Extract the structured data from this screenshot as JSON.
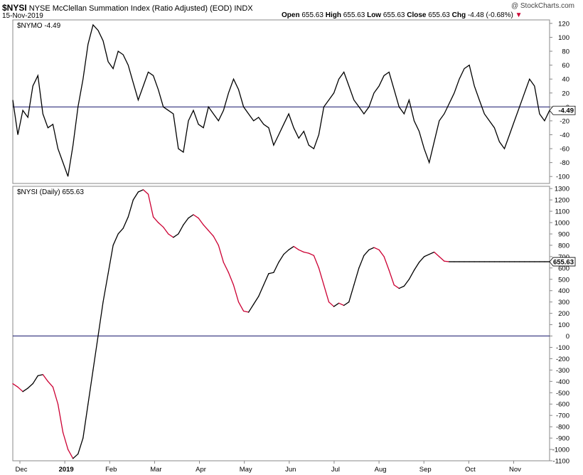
{
  "header": {
    "symbol": "$NYSI",
    "name": "NYSE McClellan Summation Index (Ratio Adjusted) (EOD)",
    "exchange": "INDX",
    "watermark": "@ StockCharts.com",
    "date": "15-Nov-2019",
    "open_label": "Open",
    "open": "655.63",
    "high_label": "High",
    "high": "655.63",
    "low_label": "Low",
    "low": "655.63",
    "close_label": "Close",
    "close": "655.63",
    "chg_label": "Chg",
    "chg": "-4.48 (-0.68%)",
    "chg_icon": "triangle-down-icon"
  },
  "chart_data": [
    {
      "type": "line",
      "panel": "upper",
      "legend": "$NYMO -4.49",
      "last_value_label": "-4.49",
      "ylim": [
        -110,
        125
      ],
      "yticks": [
        120,
        100,
        80,
        60,
        40,
        20,
        0,
        -20,
        -40,
        -60,
        -80,
        -100
      ],
      "reference_line": 0,
      "color": "#000000",
      "x": [
        0,
        3,
        6,
        9,
        12,
        15,
        18,
        21,
        24,
        27,
        30,
        33,
        36,
        39,
        42,
        45,
        48,
        51,
        54,
        57,
        60,
        63,
        66,
        69,
        72,
        75,
        78,
        81,
        84,
        87,
        90,
        93,
        96,
        99,
        102,
        105,
        108,
        111,
        114,
        117,
        120,
        123,
        126,
        129,
        132,
        135,
        138,
        141,
        144,
        147,
        150,
        153,
        156,
        159,
        162,
        165,
        168,
        171,
        174,
        177,
        180,
        183,
        186,
        189,
        192,
        195,
        198,
        201,
        204,
        207,
        210,
        213,
        216,
        219,
        222,
        225,
        228,
        231,
        234,
        237,
        240,
        243,
        246,
        249,
        252,
        255,
        258,
        261,
        264,
        267,
        270,
        273,
        276,
        279,
        282,
        285,
        288,
        291,
        294,
        297,
        300,
        303,
        306,
        309,
        312,
        315,
        318,
        321
      ],
      "values": [
        10,
        -40,
        -5,
        -15,
        30,
        45,
        -10,
        -30,
        -25,
        -60,
        -80,
        -100,
        -55,
        0,
        40,
        90,
        118,
        110,
        95,
        65,
        55,
        80,
        75,
        60,
        35,
        10,
        30,
        50,
        45,
        25,
        0,
        -5,
        -10,
        -60,
        -65,
        -20,
        -5,
        -25,
        -30,
        0,
        -10,
        -20,
        -5,
        20,
        40,
        25,
        0,
        -10,
        -20,
        -15,
        -25,
        -30,
        -55,
        -40,
        -25,
        -10,
        -30,
        -45,
        -35,
        -55,
        -60,
        -40,
        0,
        10,
        20,
        40,
        50,
        30,
        10,
        0,
        -10,
        0,
        20,
        30,
        45,
        50,
        25,
        0,
        -10,
        10,
        -20,
        -35,
        -60,
        -80,
        -50,
        -20,
        -10,
        5,
        20,
        40,
        55,
        60,
        30,
        10,
        -10,
        -20,
        -30,
        -50,
        -60,
        -40,
        -20,
        0,
        20,
        40,
        30,
        -10,
        -20,
        -5
      ],
      "x_months": [
        "Dec",
        "2019",
        "Feb",
        "Mar",
        "Apr",
        "May",
        "Jun",
        "Jul",
        "Aug",
        "Sep",
        "Oct",
        "Nov"
      ]
    },
    {
      "type": "line",
      "panel": "lower",
      "legend": "$NYSI (Daily) 655.63",
      "last_value_label": "655.63",
      "ylim": [
        -1100,
        1320
      ],
      "yticks": [
        1300,
        1200,
        1100,
        1000,
        900,
        800,
        700,
        600,
        500,
        400,
        300,
        200,
        100,
        0,
        -100,
        -200,
        -300,
        -400,
        -500,
        -600,
        -700,
        -800,
        -900,
        -1000,
        -1100
      ],
      "reference_line": 0,
      "colors": {
        "rising": "#000000",
        "falling": "#cc0033"
      },
      "x": [
        0,
        3,
        6,
        9,
        12,
        15,
        18,
        21,
        24,
        27,
        30,
        33,
        36,
        39,
        42,
        45,
        48,
        51,
        54,
        57,
        60,
        63,
        66,
        69,
        72,
        75,
        78,
        81,
        84,
        87,
        90,
        93,
        96,
        99,
        102,
        105,
        108,
        111,
        114,
        117,
        120,
        123,
        126,
        129,
        132,
        135,
        138,
        141,
        144,
        147,
        150,
        153,
        156,
        159,
        162,
        165,
        168,
        171,
        174,
        177,
        180,
        183,
        186,
        189,
        192,
        195,
        198,
        201,
        204,
        207,
        210,
        213,
        216,
        219,
        222,
        225,
        228,
        231,
        234,
        237,
        240,
        243,
        246,
        249,
        252,
        255,
        258,
        261,
        264,
        267,
        270,
        273,
        276,
        279,
        282,
        285,
        288,
        291,
        294,
        297,
        300,
        303,
        306,
        309,
        312,
        315,
        318,
        321
      ],
      "values": [
        -420,
        -450,
        -490,
        -460,
        -420,
        -350,
        -340,
        -400,
        -450,
        -600,
        -850,
        -1000,
        -1080,
        -1040,
        -900,
        -600,
        -300,
        0,
        300,
        550,
        800,
        900,
        950,
        1050,
        1200,
        1270,
        1290,
        1250,
        1050,
        1000,
        960,
        900,
        870,
        900,
        980,
        1040,
        1070,
        1040,
        980,
        930,
        880,
        800,
        650,
        560,
        450,
        300,
        220,
        210,
        280,
        350,
        450,
        550,
        560,
        650,
        720,
        760,
        790,
        760,
        740,
        730,
        710,
        600,
        450,
        300,
        260,
        290,
        270,
        300,
        450,
        600,
        710,
        760,
        780,
        760,
        700,
        580,
        450,
        420,
        440,
        500,
        580,
        650,
        700,
        720,
        740,
        700,
        660,
        655,
        655,
        655,
        655,
        655,
        655,
        655,
        655,
        655,
        655,
        655,
        655,
        655,
        655,
        655,
        655,
        655,
        655,
        655,
        655,
        655
      ]
    }
  ]
}
